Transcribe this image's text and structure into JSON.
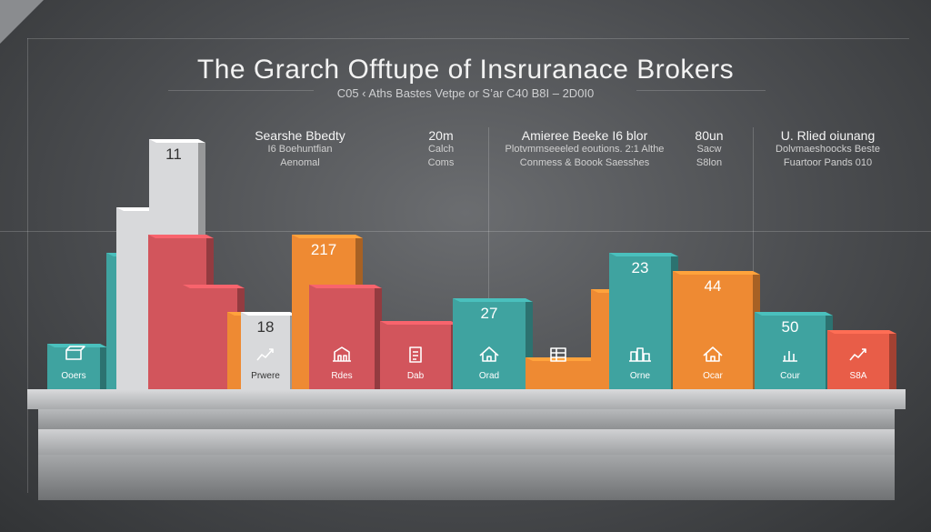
{
  "title": "The Grarch Offtupe of Insruranace Brokers",
  "subtitle": "C05 ‹ Aths Bastes Vetpe or S’ar C40 B8I – 2D0I0",
  "info": [
    {
      "heading": "Searshe Bbedty",
      "lines": [
        "I6 Boehuntfian",
        "Aenomal"
      ]
    },
    {
      "heading": "20m",
      "lines": [
        "Calch",
        "Coms"
      ]
    },
    {
      "heading": "Amieree Beeke I6 blor",
      "lines": [
        "Plotvmmseeeled eoutions. 2:1 Althe",
        "Conmess & Boook Saesshes"
      ]
    },
    {
      "heading": "80un",
      "lines": [
        "Sacw",
        "S8lon"
      ]
    },
    {
      "heading": "U. Rlied oiunang",
      "lines": [
        "Dolvmaeshoocks Beste",
        "Fuartoor Pands 010"
      ]
    }
  ],
  "colors": {
    "teal": "#3fa3a0",
    "red": "#d2555c",
    "orange": "#ee8a33",
    "silver": "#d8d9db",
    "coral": "#e85d48"
  },
  "chart_data": {
    "type": "bar",
    "bars": [
      {
        "color": "teal",
        "value": 10,
        "label": "",
        "caption": "Ooers",
        "icon": "box-icon"
      },
      {
        "color": "teal",
        "value": 30,
        "label": "",
        "caption": "",
        "icon": ""
      },
      {
        "color": "silver",
        "value": 40,
        "label": "",
        "caption": "",
        "icon": ""
      },
      {
        "color": "silver",
        "value": 55,
        "label": "11",
        "caption": "",
        "icon": ""
      },
      {
        "color": "red",
        "value": 34,
        "label": "",
        "caption": "",
        "icon": ""
      },
      {
        "color": "red",
        "value": 23,
        "label": "",
        "caption": "",
        "icon": ""
      },
      {
        "color": "orange",
        "value": 17,
        "label": "",
        "caption": "",
        "icon": ""
      },
      {
        "color": "silver",
        "value": 17,
        "label": "18",
        "caption": "Prwere",
        "icon": "growth-icon"
      },
      {
        "color": "orange",
        "value": 34,
        "label": "217",
        "caption": "",
        "icon": ""
      },
      {
        "color": "red",
        "value": 23,
        "label": "",
        "caption": "Rdes",
        "icon": "building-icon"
      },
      {
        "color": "red",
        "value": 15,
        "label": "",
        "caption": "Dab",
        "icon": "document-icon"
      },
      {
        "color": "teal",
        "value": 20,
        "label": "27",
        "caption": "Orad",
        "icon": "house-icon"
      },
      {
        "color": "orange",
        "value": 7,
        "label": "",
        "caption": "",
        "icon": "table-icon"
      },
      {
        "color": "orange",
        "value": 22,
        "label": "",
        "caption": "",
        "icon": ""
      },
      {
        "color": "teal",
        "value": 30,
        "label": "23",
        "caption": "Orne",
        "icon": "city-icon"
      },
      {
        "color": "orange",
        "value": 26,
        "label": "44",
        "caption": "Ocar",
        "icon": "house-icon"
      },
      {
        "color": "teal",
        "value": 17,
        "label": "50",
        "caption": "Cour",
        "icon": "chart-icon"
      },
      {
        "color": "coral",
        "value": 13,
        "label": "",
        "caption": "S8A",
        "icon": "growth-icon"
      }
    ]
  }
}
